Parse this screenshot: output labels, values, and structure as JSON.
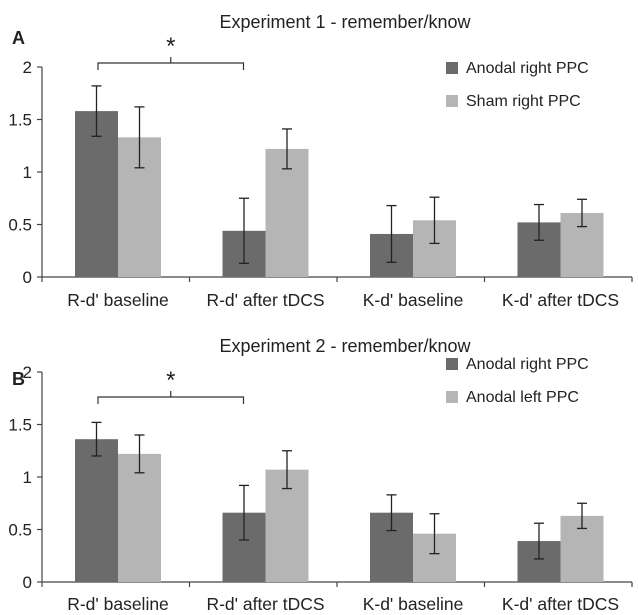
{
  "chart_data": [
    {
      "type": "bar",
      "panel_label": "A",
      "title": "Experiment 1 - remember/know",
      "categories": [
        "R-d' baseline",
        "R-d' after tDCS",
        "K-d' baseline",
        "K-d' after tDCS"
      ],
      "series": [
        {
          "name": "Anodal right PPC",
          "color": "#6b6b6b",
          "values": [
            1.58,
            0.44,
            0.41,
            0.52
          ],
          "errors": [
            0.24,
            0.31,
            0.27,
            0.17
          ]
        },
        {
          "name": "Sham right PPC",
          "color": "#b5b5b5",
          "values": [
            1.33,
            1.22,
            0.54,
            0.61
          ],
          "errors": [
            0.29,
            0.19,
            0.22,
            0.13
          ]
        }
      ],
      "ylim": [
        0,
        2
      ],
      "yticks": [
        "0",
        "0.5",
        "1",
        "1.5",
        "2"
      ],
      "legend_position": "top-right",
      "significance": {
        "from_category": 0,
        "to_category": 1,
        "symbol": "*"
      }
    },
    {
      "type": "bar",
      "panel_label": "B",
      "title": "Experiment 2 - remember/know",
      "categories": [
        "R-d' baseline",
        "R-d' after tDCS",
        "K-d' baseline",
        "K-d' after tDCS"
      ],
      "series": [
        {
          "name": "Anodal right PPC",
          "color": "#6b6b6b",
          "values": [
            1.36,
            0.66,
            0.66,
            0.39
          ],
          "errors": [
            0.16,
            0.26,
            0.17,
            0.17
          ]
        },
        {
          "name": "Anodal left PPC",
          "color": "#b5b5b5",
          "values": [
            1.22,
            1.07,
            0.46,
            0.63
          ],
          "errors": [
            0.18,
            0.18,
            0.19,
            0.12
          ]
        }
      ],
      "ylim": [
        0,
        2
      ],
      "yticks": [
        "0",
        "0.5",
        "1",
        "1.5",
        "2"
      ],
      "legend_position": "top-right",
      "significance": {
        "from_category": 0,
        "to_category": 1,
        "symbol": "*"
      }
    }
  ]
}
